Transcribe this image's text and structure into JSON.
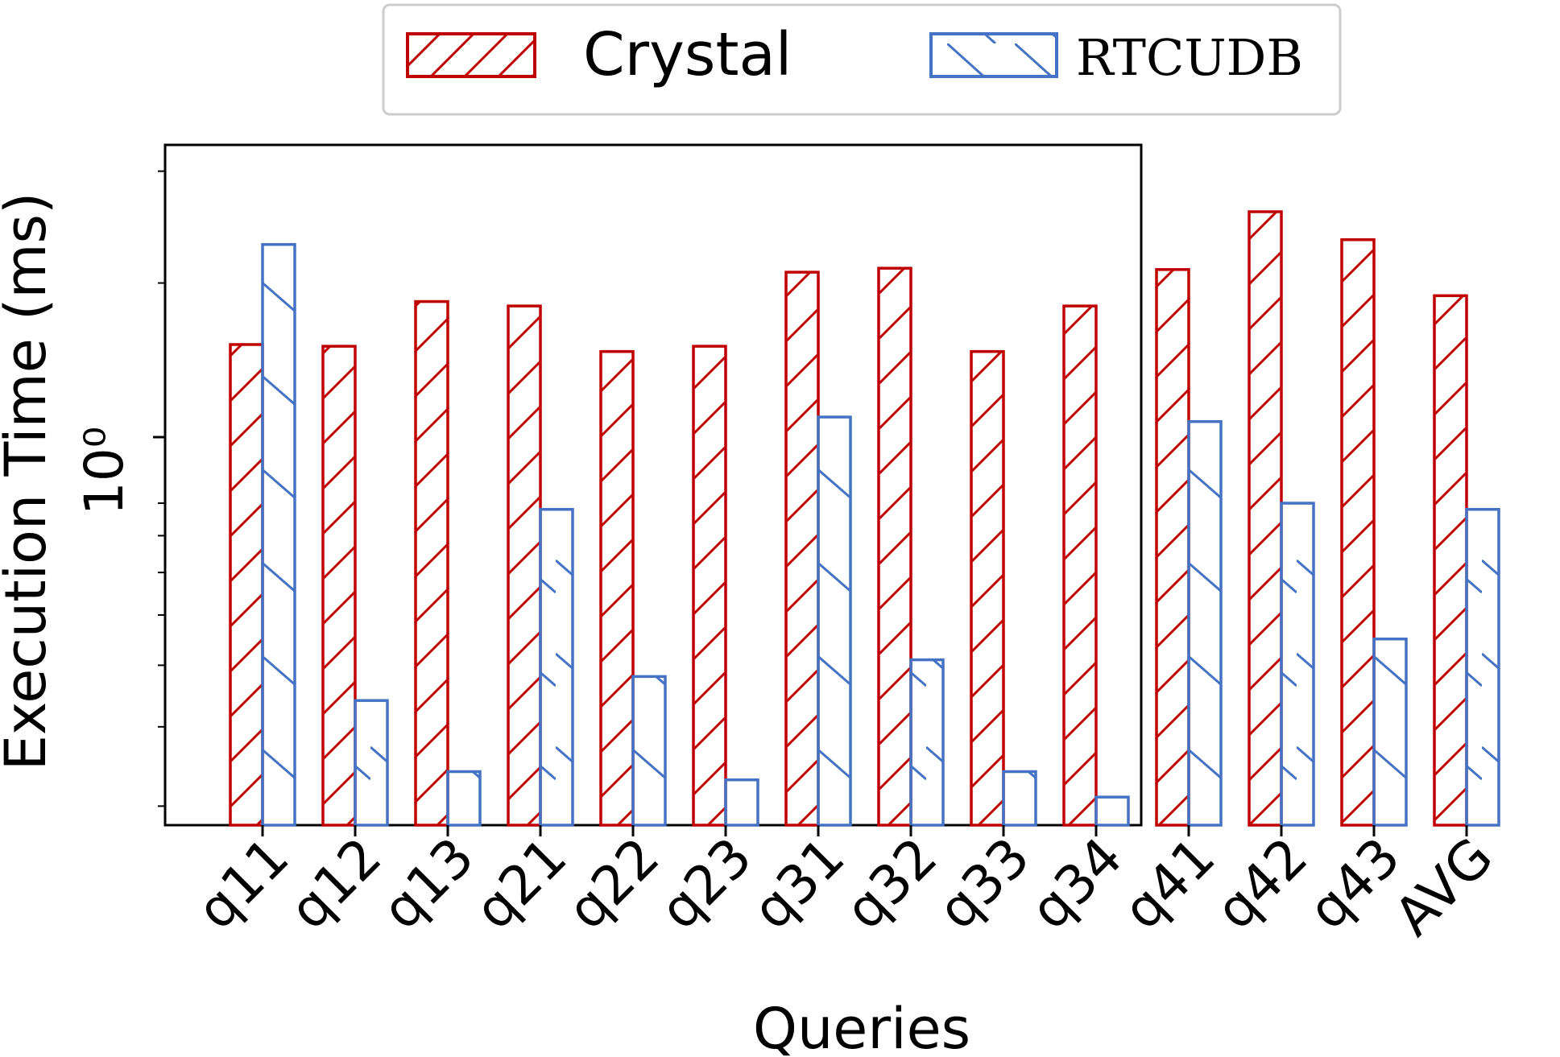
{
  "chart_data": {
    "type": "bar",
    "xlabel": "Queries",
    "ylabel": "Execution Time (ms)",
    "yscale": "log",
    "ylim": [
      0.28,
      3.3
    ],
    "ytick_major": {
      "value": 1,
      "label": "10⁰"
    },
    "categories": [
      "q11",
      "q12",
      "q13",
      "q21",
      "q22",
      "q23",
      "q31",
      "q32",
      "q33",
      "q34",
      "q41",
      "q42",
      "q43",
      "AVG"
    ],
    "series": [
      {
        "name": "Crystal",
        "color": "#c00000",
        "hatch": "forward-diagonal",
        "values": [
          1.6,
          1.59,
          1.87,
          1.84,
          1.56,
          1.59,
          2.08,
          2.11,
          1.56,
          1.84,
          2.1,
          2.59,
          2.34,
          1.91
        ]
      },
      {
        "name": "RTCUDB",
        "color": "#4472c4",
        "hatch": "back-diagonal",
        "values": [
          2.3,
          0.44,
          0.34,
          0.88,
          0.48,
          0.33,
          1.23,
          0.51,
          0.34,
          0.31,
          1.21,
          0.9,
          0.55,
          0.88
        ]
      }
    ],
    "legend": {
      "placement": "top-center",
      "entries": [
        "Crystal",
        "RTCUDB"
      ]
    },
    "grid": false
  }
}
